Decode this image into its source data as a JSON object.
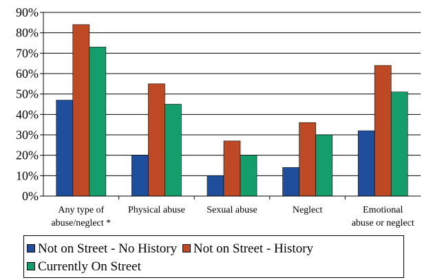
{
  "chart_data": {
    "type": "bar",
    "categories": [
      [
        "Any type of",
        "abuse/neglect *"
      ],
      [
        "Physical abuse"
      ],
      [
        "Sexual abuse"
      ],
      [
        "Neglect"
      ],
      [
        "Emotional",
        "abuse or neglect"
      ]
    ],
    "series": [
      {
        "name": "Not on Street - No History",
        "color": "#1F4E9C",
        "values": [
          47,
          20,
          10,
          14,
          32
        ]
      },
      {
        "name": "Not on Street - History",
        "color": "#BE4A25",
        "values": [
          84,
          55,
          27,
          36,
          64
        ]
      },
      {
        "name": "Currently On Street",
        "color": "#139E6B",
        "values": [
          73,
          45,
          20,
          30,
          51
        ]
      }
    ],
    "ylim": [
      0,
      90
    ],
    "yticks": [
      "0%",
      "10%",
      "20%",
      "30%",
      "40%",
      "50%",
      "60%",
      "70%",
      "80%",
      "90%"
    ],
    "grid": true,
    "legend_position": "bottom"
  }
}
